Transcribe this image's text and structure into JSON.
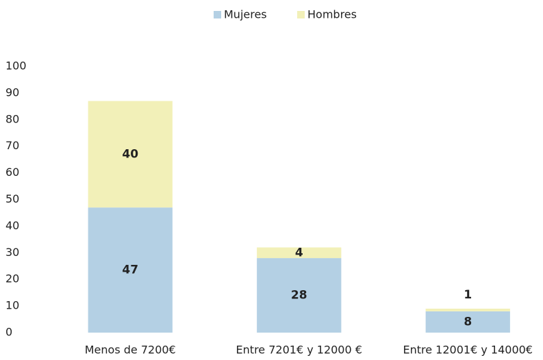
{
  "chart_data": {
    "type": "bar",
    "stacked": true,
    "categories": [
      "Menos de 7200€",
      "Entre 7201€  y 12000 €",
      "Entre 12001€ y 14000€"
    ],
    "series": [
      {
        "name": "Mujeres",
        "color": "#b4d0e4",
        "values": [
          47,
          28,
          8
        ]
      },
      {
        "name": "Hombres",
        "color": "#f2f0b8",
        "values": [
          40,
          4,
          1
        ]
      }
    ],
    "ylim": [
      0,
      100
    ],
    "yticks": [
      0,
      10,
      20,
      30,
      40,
      50,
      60,
      70,
      80,
      90,
      100
    ],
    "grid": false,
    "legend": "top"
  }
}
